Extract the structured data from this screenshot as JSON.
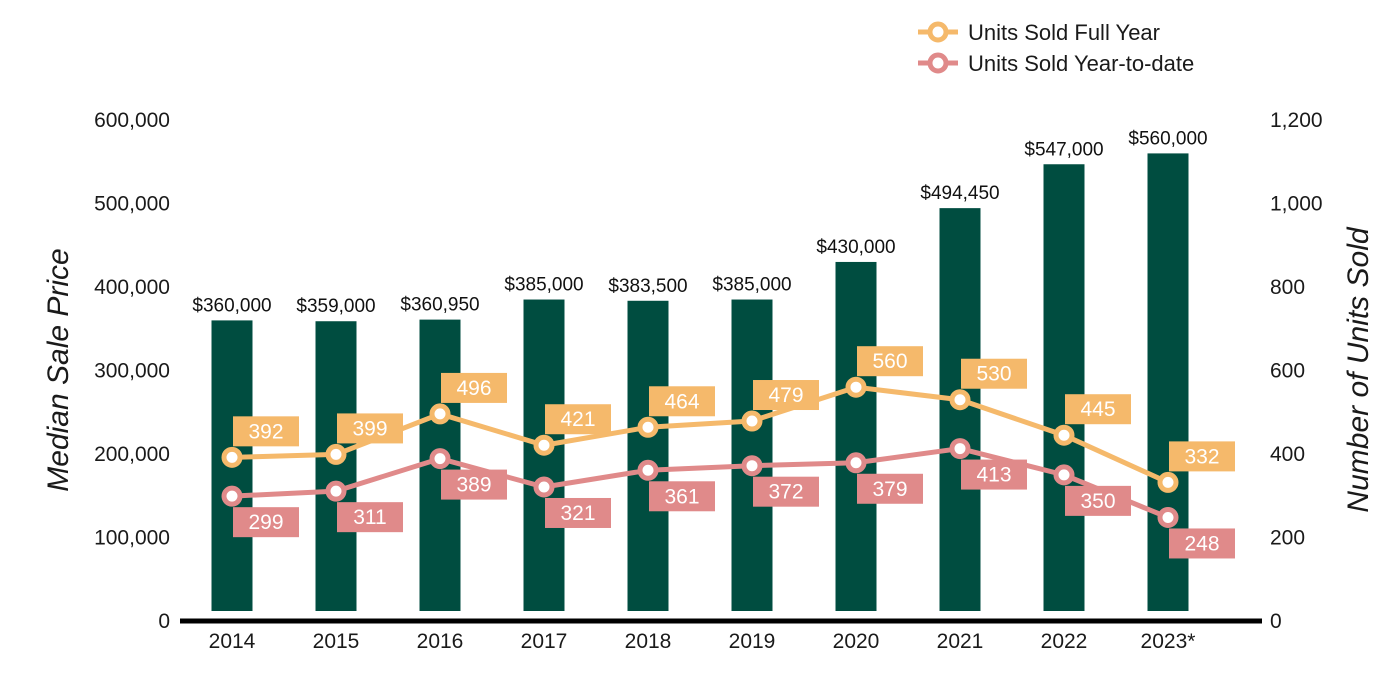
{
  "chart_data": {
    "type": "bar",
    "categories": [
      "2014",
      "2015",
      "2016",
      "2017",
      "2018",
      "2019",
      "2020",
      "2021",
      "2022",
      "2023*"
    ],
    "bar_series": {
      "values": [
        360000,
        359000,
        360950,
        385000,
        383500,
        385000,
        430000,
        494450,
        547000,
        560000
      ],
      "labels": [
        "$360,000",
        "$359,000",
        "$360,950",
        "$385,000",
        "$383,500",
        "$385,000",
        "$430,000",
        "$494,450",
        "$547,000",
        "$560,000"
      ],
      "color": "#004d40"
    },
    "line_series": [
      {
        "name": "Units Sold Full Year",
        "type": "line",
        "axis": "right",
        "values": [
          392,
          399,
          496,
          421,
          464,
          479,
          560,
          530,
          445,
          332
        ],
        "color": "#f5b96b"
      },
      {
        "name": "Units Sold Year-to-date",
        "type": "line",
        "axis": "right",
        "values": [
          299,
          311,
          389,
          321,
          361,
          372,
          379,
          413,
          350,
          248
        ],
        "color": "#e08a8a"
      }
    ],
    "ylabel_left": "Median Sale Price",
    "ylabel_right": "Number of Units Sold",
    "ylim_left": [
      0,
      600000
    ],
    "ylim_right": [
      0,
      1200
    ],
    "yticks_left": [
      "0",
      "100,000",
      "200,000",
      "300,000",
      "400,000",
      "500,000",
      "600,000"
    ],
    "yticks_right": [
      "0",
      "200",
      "400",
      "600",
      "800",
      "1,000",
      "1,200"
    ],
    "grid": false,
    "legend_position": "top-right"
  }
}
